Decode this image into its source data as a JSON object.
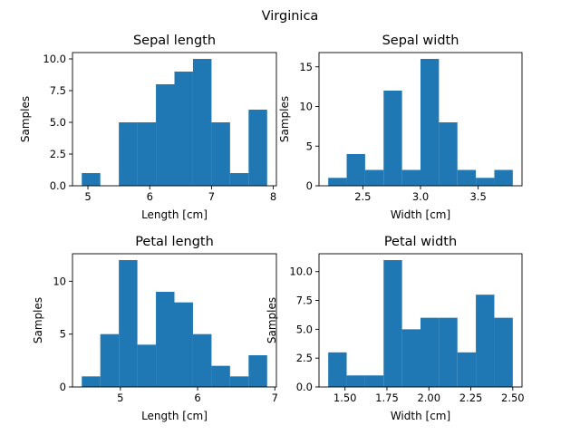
{
  "suptitle": "Virginica",
  "colors": {
    "bar": "#1f77b4",
    "axis": "#000000",
    "background": "#ffffff"
  },
  "chart_data": [
    {
      "type": "bar",
      "title": "Sepal length",
      "xlabel": "Length [cm]",
      "ylabel": "Samples",
      "bin_edges": [
        4.9,
        5.2,
        5.5,
        5.8,
        6.1,
        6.4,
        6.7,
        7.0,
        7.3,
        7.6,
        7.9
      ],
      "values": [
        1,
        0,
        5,
        5,
        8,
        9,
        10,
        5,
        1,
        6
      ],
      "xlim": [
        4.75,
        8.05
      ],
      "ylim": [
        0,
        10.5
      ],
      "xticks": [
        5,
        6,
        7,
        8
      ],
      "xtick_labels": [
        "5",
        "6",
        "7",
        "8"
      ],
      "yticks": [
        0,
        2.5,
        5,
        7.5,
        10
      ],
      "ytick_labels": [
        "0.0",
        "2.5",
        "5.0",
        "7.5",
        "10.0"
      ],
      "grid": false
    },
    {
      "type": "bar",
      "title": "Sepal width",
      "xlabel": "Width [cm]",
      "ylabel": "Samples",
      "bin_edges": [
        2.2,
        2.36,
        2.52,
        2.68,
        2.84,
        3.0,
        3.16,
        3.32,
        3.48,
        3.64,
        3.8
      ],
      "values": [
        1,
        4,
        2,
        12,
        2,
        16,
        8,
        2,
        1,
        2
      ],
      "xlim": [
        2.12,
        3.88
      ],
      "ylim": [
        0,
        16.8
      ],
      "xticks": [
        2.5,
        3.0,
        3.5
      ],
      "xtick_labels": [
        "2.5",
        "3.0",
        "3.5"
      ],
      "yticks": [
        0,
        5,
        10,
        15
      ],
      "ytick_labels": [
        "0",
        "5",
        "10",
        "15"
      ],
      "grid": false
    },
    {
      "type": "bar",
      "title": "Petal length",
      "xlabel": "Length [cm]",
      "ylabel": "Samples",
      "bin_edges": [
        4.5,
        4.74,
        4.98,
        5.22,
        5.46,
        5.7,
        5.94,
        6.18,
        6.42,
        6.66,
        6.9
      ],
      "values": [
        1,
        5,
        12,
        4,
        9,
        8,
        5,
        2,
        1,
        3
      ],
      "xlim": [
        4.38,
        7.02
      ],
      "ylim": [
        0,
        12.6
      ],
      "xticks": [
        5,
        6,
        7
      ],
      "xtick_labels": [
        "5",
        "6",
        "7"
      ],
      "yticks": [
        0,
        5,
        10
      ],
      "ytick_labels": [
        "0",
        "5",
        "10"
      ],
      "grid": false
    },
    {
      "type": "bar",
      "title": "Petal width",
      "xlabel": "Width [cm]",
      "ylabel": "Samples",
      "bin_edges": [
        1.4,
        1.51,
        1.62,
        1.73,
        1.84,
        1.95,
        2.06,
        2.17,
        2.28,
        2.39,
        2.5
      ],
      "values": [
        3,
        1,
        1,
        11,
        5,
        6,
        6,
        3,
        8,
        6
      ],
      "xlim": [
        1.345,
        2.555
      ],
      "ylim": [
        0,
        11.55
      ],
      "xticks": [
        1.5,
        1.75,
        2.0,
        2.25,
        2.5
      ],
      "xtick_labels": [
        "1.50",
        "1.75",
        "2.00",
        "2.25",
        "2.50"
      ],
      "yticks": [
        0,
        2.5,
        5,
        7.5,
        10
      ],
      "ytick_labels": [
        "0.0",
        "2.5",
        "5.0",
        "7.5",
        "10.0"
      ],
      "grid": false
    }
  ]
}
